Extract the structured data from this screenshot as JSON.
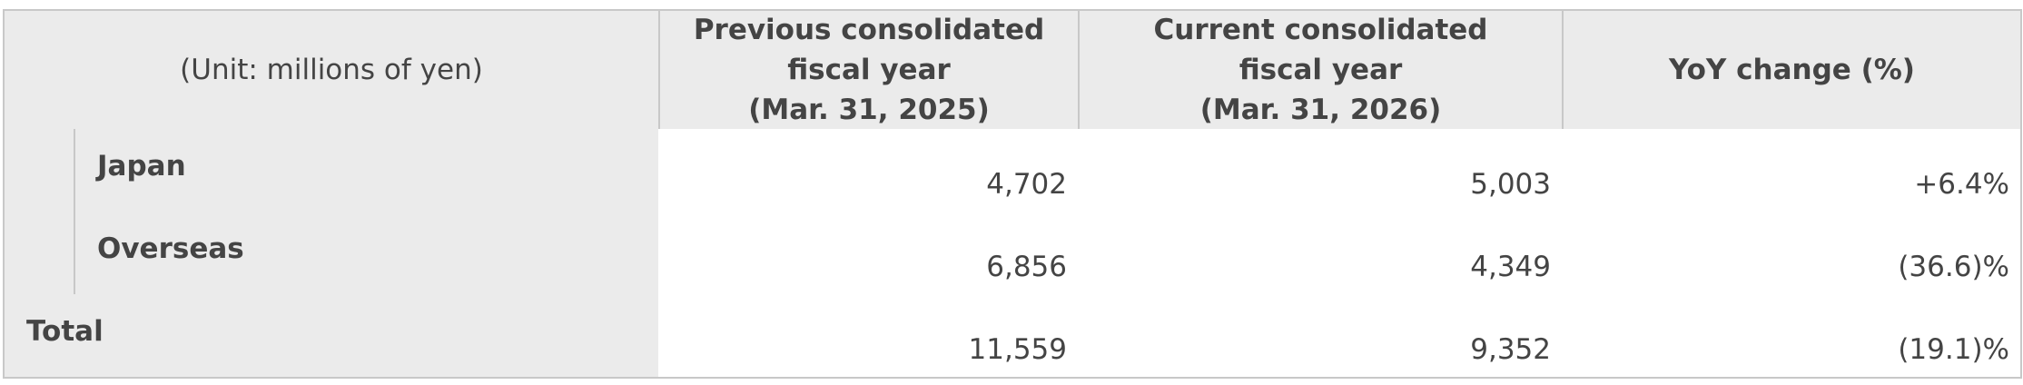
{
  "table": {
    "header": {
      "unit": "(Unit: millions of yen)",
      "columns": [
        [
          "Previous consolidated",
          "fiscal year",
          "(Mar. 31, 2025)"
        ],
        [
          "Current consolidated",
          "fiscal year",
          "(Mar. 31, 2026)"
        ],
        [
          "YoY change (%)"
        ]
      ]
    },
    "rows": [
      [
        "Japan",
        "4,702",
        "5,003",
        "+6.4%"
      ],
      [
        "Overseas",
        "6,856",
        "4,349",
        "(36.6)%"
      ],
      [
        "Total",
        "11,559",
        "9,352",
        "(19.1)%"
      ]
    ]
  }
}
